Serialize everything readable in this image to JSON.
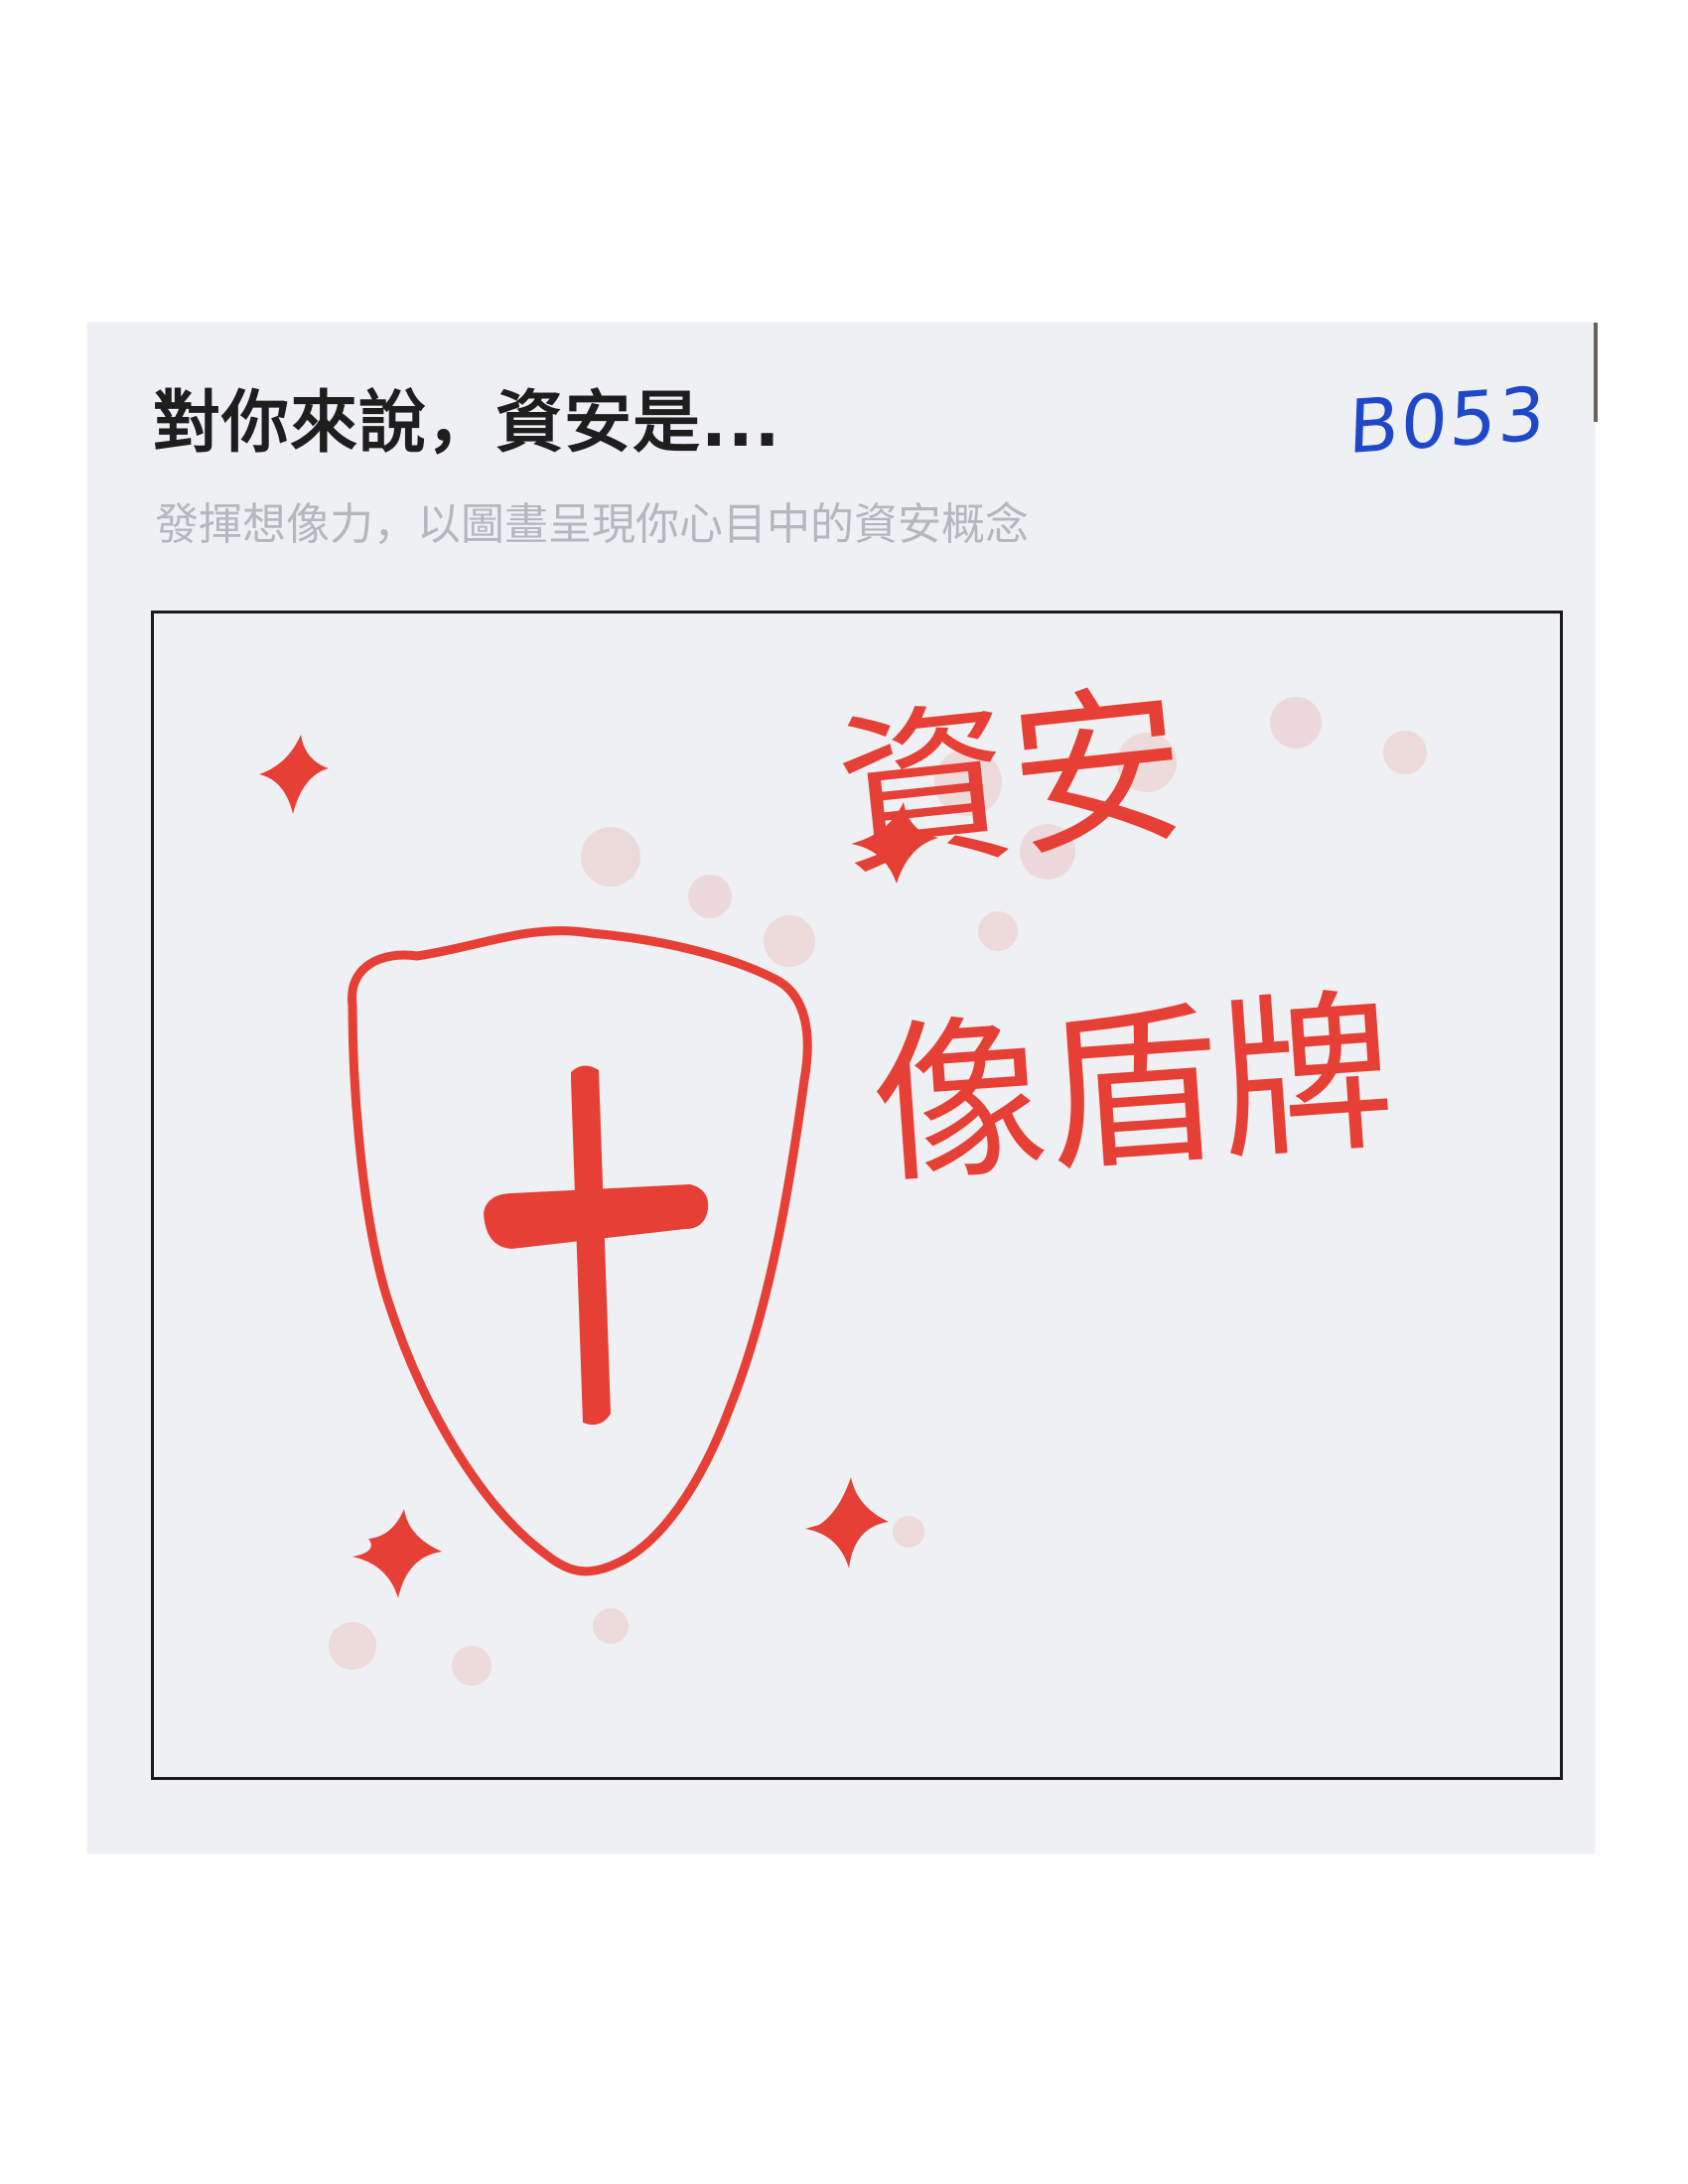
{
  "card": {
    "title": "對你來說，資安是...",
    "subtitle": "發揮想像力，以圖畫呈現你心目中的資安概念",
    "code": "B053"
  },
  "drawing": {
    "ink_color": "#e63f35",
    "handwriting_line1": "資安",
    "handwriting_line2": "像盾牌"
  }
}
